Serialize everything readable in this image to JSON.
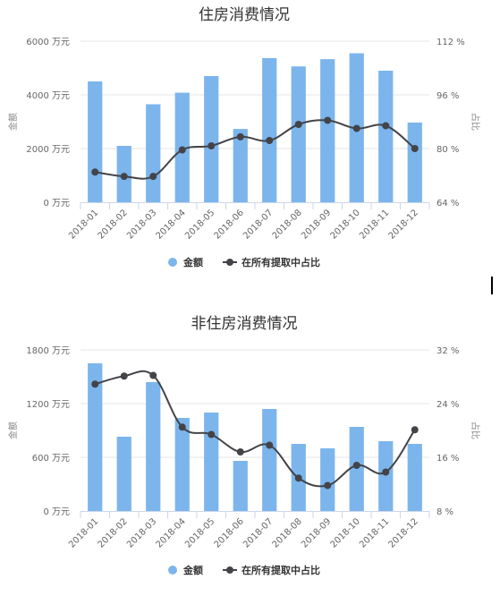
{
  "chart_data": [
    {
      "type": "bar+line",
      "title": "住房消费情况",
      "left_axis": {
        "label": "金额",
        "ticks": [
          "0 万元",
          "2000 万元",
          "4000 万元",
          "6000 万元"
        ],
        "min": 0,
        "max": 6000
      },
      "right_axis": {
        "label": "占比",
        "ticks": [
          "64 %",
          "80 %",
          "96 %",
          "112 %"
        ],
        "min": 64,
        "max": 112
      },
      "categories": [
        "2018-01",
        "2018-02",
        "2018-03",
        "2018-04",
        "2018-05",
        "2018-06",
        "2018-07",
        "2018-08",
        "2018-09",
        "2018-10",
        "2018-11",
        "2018-12"
      ],
      "series": [
        {
          "name": "金额",
          "kind": "bar",
          "axis": "left",
          "color": "#7cb5ec",
          "values": [
            4500,
            2100,
            3650,
            4080,
            4700,
            2730,
            5370,
            5060,
            5330,
            5550,
            4900,
            2970
          ]
        },
        {
          "name": "在所有提取中占比",
          "kind": "line",
          "axis": "right",
          "color": "#434348",
          "values": [
            73,
            71.7,
            71.7,
            79.6,
            80.8,
            83.5,
            82.4,
            87.2,
            88.4,
            86,
            86.8,
            80
          ]
        }
      ],
      "legend": "bottom-center"
    },
    {
      "type": "bar+line",
      "title": "非住房消费情况",
      "left_axis": {
        "label": "金额",
        "ticks": [
          "0 万元",
          "600 万元",
          "1200 万元",
          "1800 万元"
        ],
        "min": 0,
        "max": 1800
      },
      "right_axis": {
        "label": "占比",
        "ticks": [
          "8 %",
          "16 %",
          "24 %",
          "32 %"
        ],
        "min": 8,
        "max": 32
      },
      "categories": [
        "2018-01",
        "2018-02",
        "2018-03",
        "2018-04",
        "2018-05",
        "2018-06",
        "2018-07",
        "2018-08",
        "2018-09",
        "2018-10",
        "2018-11",
        "2018-12"
      ],
      "series": [
        {
          "name": "金额",
          "kind": "bar",
          "axis": "left",
          "color": "#7cb5ec",
          "values": [
            1650,
            830,
            1440,
            1040,
            1100,
            560,
            1140,
            750,
            700,
            940,
            780,
            750
          ]
        },
        {
          "name": "在所有提取中占比",
          "kind": "line",
          "axis": "right",
          "color": "#434348",
          "values": [
            26.9,
            28.1,
            28.2,
            20.5,
            19.4,
            16.8,
            17.8,
            12.9,
            11.8,
            14.8,
            13.8,
            20.1
          ]
        }
      ],
      "legend": "bottom-center"
    }
  ]
}
